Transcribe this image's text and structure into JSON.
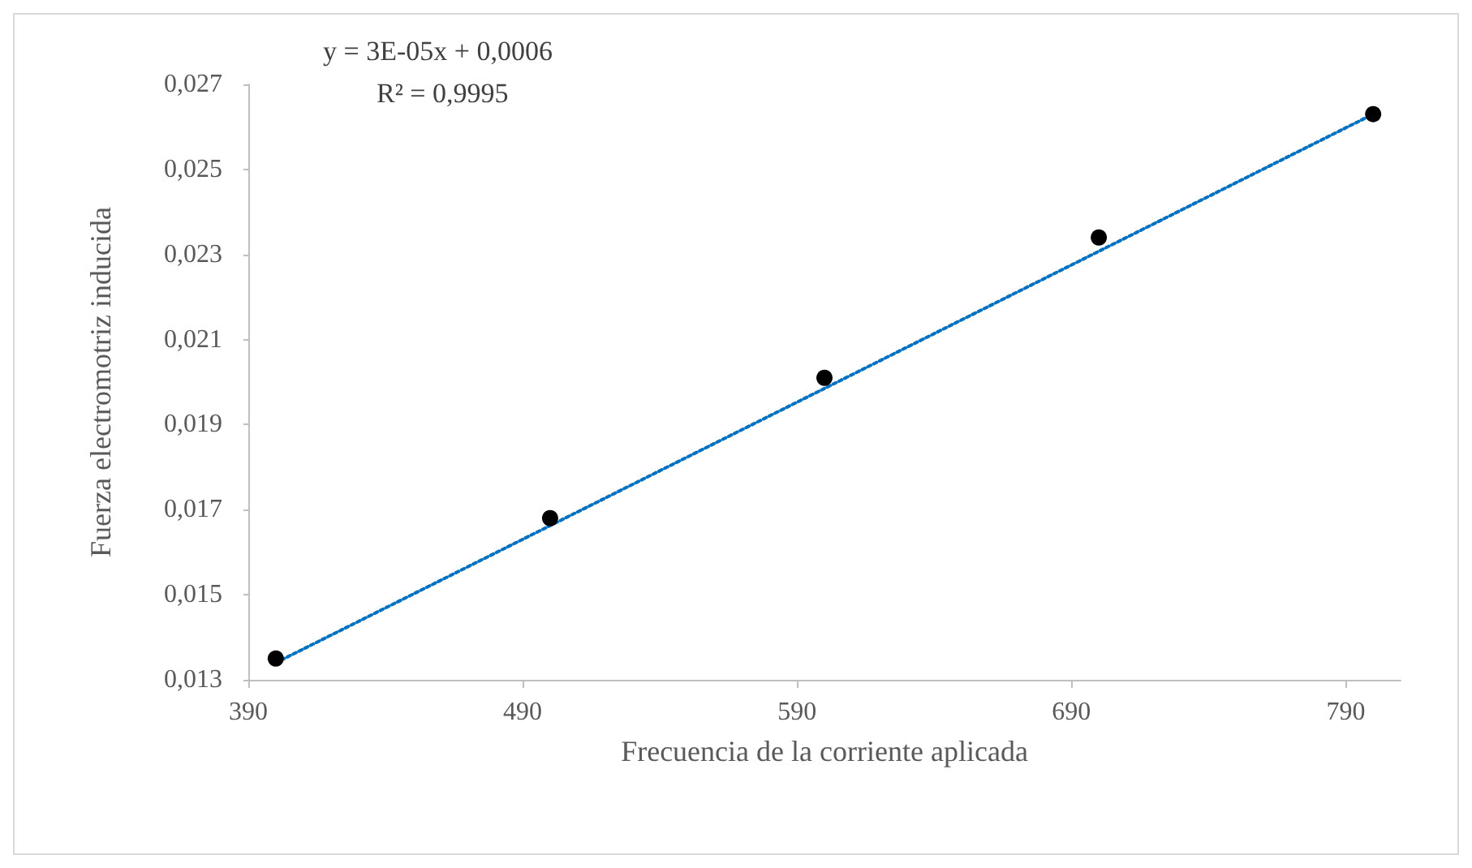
{
  "chart_data": {
    "type": "scatter",
    "xlabel": "Frecuencia de la corriente aplicada",
    "ylabel": "Fuerza electromotriz inducida",
    "annotations": [
      "y = 3E-05x + 0,0006",
      "R² = 0,9995"
    ],
    "series": [
      {
        "color": "#000000",
        "marker": "circle",
        "x": [
          400,
          500,
          600,
          700,
          800
        ],
        "values": [
          0.0135,
          0.0168,
          0.0201,
          0.0234,
          0.0263
        ]
      },
      {
        "type": "line",
        "color": "#0070c0",
        "marker": "none",
        "line_style": "dotted",
        "x": [
          400,
          800
        ],
        "values": [
          0.0134,
          0.0263
        ]
      }
    ],
    "xlim": [
      390,
      810
    ],
    "xticks": [
      390,
      490,
      590,
      690,
      790
    ],
    "ylim": [
      0.013,
      0.027
    ],
    "yticks": [
      {
        "value": 0.013,
        "label": "0,013"
      },
      {
        "value": 0.015,
        "label": "0,015"
      },
      {
        "value": 0.017,
        "label": "0,017"
      },
      {
        "value": 0.019,
        "label": "0,019"
      },
      {
        "value": 0.021,
        "label": "0,021"
      },
      {
        "value": 0.023,
        "label": "0,023"
      },
      {
        "value": 0.025,
        "label": "0,025"
      },
      {
        "value": 0.027,
        "label": "0,027"
      }
    ],
    "grid": false
  }
}
